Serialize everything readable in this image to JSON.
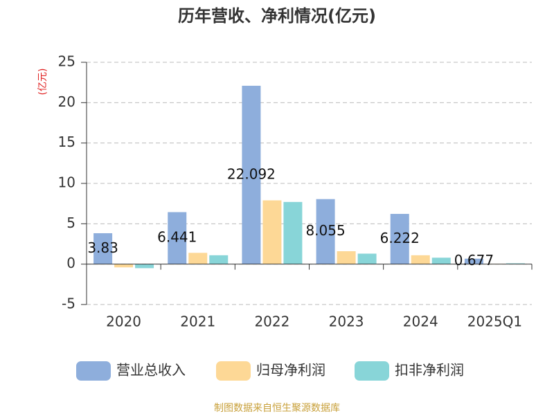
{
  "chart_data": {
    "type": "bar",
    "title": "历年营收、净利情况(亿元)",
    "y_label": "(亿元)",
    "categories": [
      "2020",
      "2021",
      "2022",
      "2023",
      "2024",
      "2025Q1"
    ],
    "series": [
      {
        "name": "营业总收入",
        "color": "#8eaedc",
        "values": [
          3.83,
          6.441,
          22.092,
          8.055,
          6.222,
          0.677
        ]
      },
      {
        "name": "归母净利润",
        "color": "#fdd896",
        "values": [
          -0.4,
          1.4,
          7.9,
          1.6,
          1.1,
          0.05
        ]
      },
      {
        "name": "扣非净利润",
        "color": "#88d5d8",
        "values": [
          -0.5,
          1.1,
          7.7,
          1.3,
          0.8,
          0.1
        ]
      }
    ],
    "ylim": [
      -5,
      25
    ],
    "yticks": [
      -5,
      0,
      5,
      10,
      15,
      20,
      25
    ],
    "grid": true,
    "source": "制图数据来自恒生聚源数据库"
  }
}
